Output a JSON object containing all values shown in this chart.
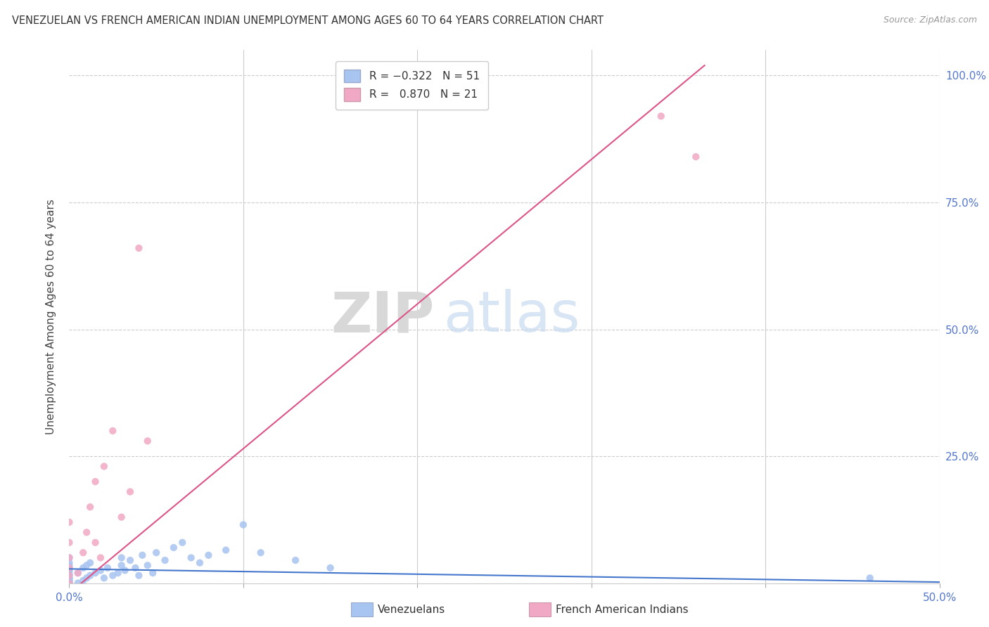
{
  "title": "VENEZUELAN VS FRENCH AMERICAN INDIAN UNEMPLOYMENT AMONG AGES 60 TO 64 YEARS CORRELATION CHART",
  "source_text": "Source: ZipAtlas.com",
  "ylabel": "Unemployment Among Ages 60 to 64 years",
  "xlim": [
    0.0,
    0.5
  ],
  "ylim": [
    0.0,
    1.05
  ],
  "yticks": [
    0.0,
    0.25,
    0.5,
    0.75,
    1.0
  ],
  "ytick_labels": [
    "",
    "25.0%",
    "50.0%",
    "75.0%",
    "100.0%"
  ],
  "legend_r1": "R = -0.322",
  "legend_n1": "N = 51",
  "legend_r2": "R =  0.870",
  "legend_n2": "N = 21",
  "watermark_zip": "ZIP",
  "watermark_atlas": "atlas",
  "blue_color": "#a8c4f0",
  "pink_color": "#f0a8c4",
  "blue_line_color": "#4477cc",
  "pink_line_color": "#dd5588",
  "ven_x": [
    0.0,
    0.0,
    0.0,
    0.0,
    0.0,
    0.0,
    0.0,
    0.0,
    0.0,
    0.0,
    0.0,
    0.0,
    0.0,
    0.0,
    0.0,
    0.005,
    0.005,
    0.008,
    0.008,
    0.01,
    0.01,
    0.012,
    0.012,
    0.015,
    0.018,
    0.02,
    0.022,
    0.025,
    0.028,
    0.03,
    0.03,
    0.032,
    0.035,
    0.038,
    0.04,
    0.042,
    0.045,
    0.048,
    0.05,
    0.055,
    0.06,
    0.065,
    0.07,
    0.075,
    0.08,
    0.09,
    0.1,
    0.11,
    0.13,
    0.15,
    0.46
  ],
  "ven_y": [
    0.0,
    0.0,
    0.0,
    0.0,
    0.005,
    0.005,
    0.01,
    0.01,
    0.015,
    0.02,
    0.025,
    0.03,
    0.035,
    0.04,
    0.05,
    0.0,
    0.02,
    0.005,
    0.03,
    0.01,
    0.035,
    0.015,
    0.04,
    0.02,
    0.025,
    0.01,
    0.03,
    0.015,
    0.02,
    0.035,
    0.05,
    0.025,
    0.045,
    0.03,
    0.015,
    0.055,
    0.035,
    0.02,
    0.06,
    0.045,
    0.07,
    0.08,
    0.05,
    0.04,
    0.055,
    0.065,
    0.115,
    0.06,
    0.045,
    0.03,
    0.01
  ],
  "fr_x": [
    0.0,
    0.0,
    0.0,
    0.0,
    0.0,
    0.0,
    0.005,
    0.008,
    0.01,
    0.012,
    0.015,
    0.015,
    0.018,
    0.02,
    0.025,
    0.03,
    0.035,
    0.04,
    0.045,
    0.34,
    0.36
  ],
  "fr_y": [
    0.0,
    0.015,
    0.03,
    0.05,
    0.08,
    0.12,
    0.02,
    0.06,
    0.1,
    0.15,
    0.2,
    0.08,
    0.05,
    0.23,
    0.3,
    0.13,
    0.18,
    0.66,
    0.28,
    0.92,
    0.84
  ],
  "blue_trendline_x": [
    0.0,
    0.5
  ],
  "blue_trendline_y": [
    0.028,
    0.002
  ],
  "pink_trendline_x": [
    0.0,
    0.365
  ],
  "pink_trendline_y": [
    -0.02,
    1.02
  ]
}
